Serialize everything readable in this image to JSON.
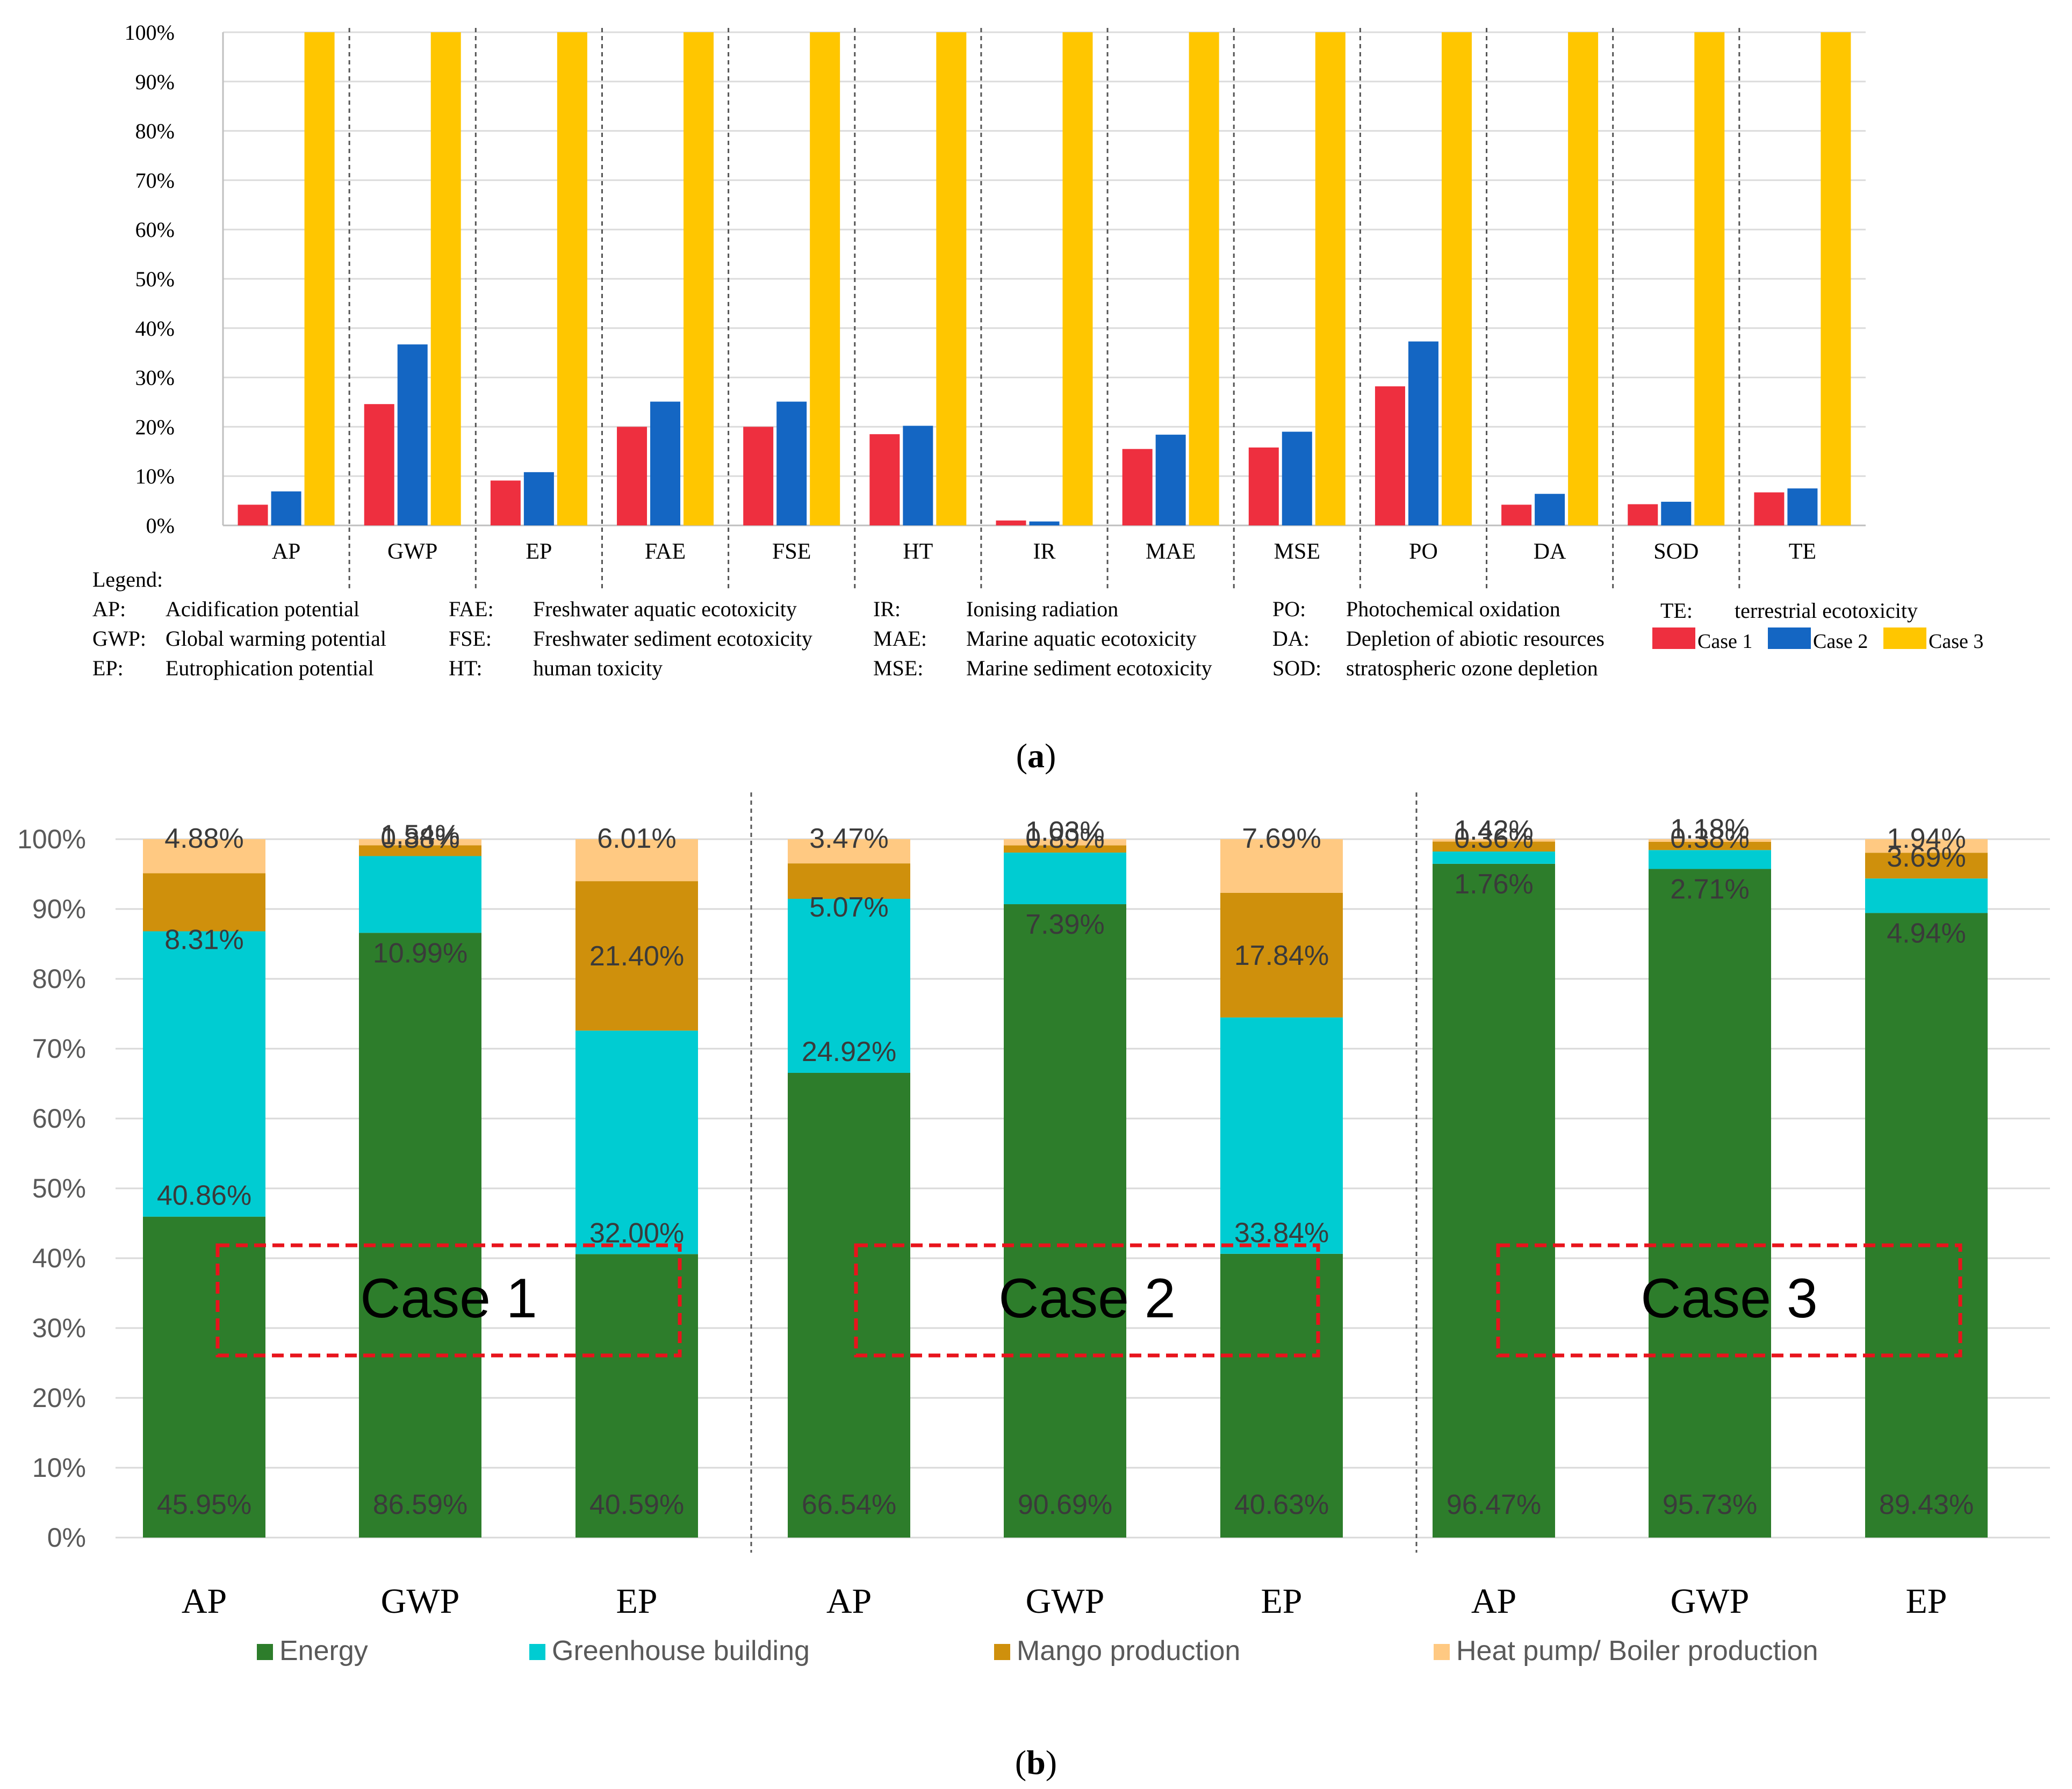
{
  "chart_data": [
    {
      "id": "a",
      "type": "bar",
      "panel_label": "a",
      "ylim": [
        0,
        100
      ],
      "y_ticks": [
        "0%",
        "10%",
        "20%",
        "30%",
        "40%",
        "50%",
        "60%",
        "70%",
        "80%",
        "90%",
        "100%"
      ],
      "categories": [
        "AP",
        "GWP",
        "EP",
        "FAE",
        "FSE",
        "HT",
        "IR",
        "MAE",
        "MSE",
        "PO",
        "DA",
        "SOD",
        "TE"
      ],
      "series": [
        {
          "name": "Case 1",
          "color": "#ee2f3f",
          "values": [
            4.2,
            24.6,
            9.1,
            20.0,
            20.0,
            18.5,
            1.0,
            15.5,
            15.8,
            28.2,
            4.2,
            4.3,
            6.7
          ]
        },
        {
          "name": "Case 2",
          "color": "#1466c3",
          "values": [
            6.9,
            36.7,
            10.8,
            25.1,
            25.1,
            20.2,
            0.8,
            18.4,
            19.0,
            37.3,
            6.4,
            4.8,
            7.5
          ]
        },
        {
          "name": "Case 3",
          "color": "#ffc600",
          "values": [
            100,
            100,
            100,
            100,
            100,
            100,
            100,
            100,
            100,
            100,
            100,
            100,
            100
          ]
        }
      ],
      "legend_title": "Legend:",
      "legend_abbreviations": [
        {
          "abbr": "AP:",
          "text": "Acidification potential"
        },
        {
          "abbr": "GWP:",
          "text": "Global warming potential"
        },
        {
          "abbr": "EP:",
          "text": "Eutrophication potential"
        },
        {
          "abbr": "FAE:",
          "text": "Freshwater aquatic ecotoxicity"
        },
        {
          "abbr": "FSE:",
          "text": "Freshwater sediment ecotoxicity"
        },
        {
          "abbr": "HT:",
          "text": "human toxicity"
        },
        {
          "abbr": "IR:",
          "text": "Ionising radiation"
        },
        {
          "abbr": "MAE:",
          "text": "Marine aquatic ecotoxicity"
        },
        {
          "abbr": "MSE:",
          "text": "Marine sediment ecotoxicity"
        },
        {
          "abbr": "PO:",
          "text": "Photochemical oxidation"
        },
        {
          "abbr": "DA:",
          "text": "Depletion of abiotic resources"
        },
        {
          "abbr": "SOD:",
          "text": "stratospheric ozone depletion"
        },
        {
          "abbr": "TE:",
          "text": "terrestrial ecotoxicity"
        }
      ]
    },
    {
      "id": "b",
      "type": "bar",
      "stacked": true,
      "panel_label": "b",
      "ylim": [
        0,
        100
      ],
      "y_ticks": [
        "0%",
        "10%",
        "20%",
        "30%",
        "40%",
        "50%",
        "60%",
        "70%",
        "80%",
        "90%",
        "100%"
      ],
      "series_names": [
        "Energy",
        "Greenhouse building",
        "Mango production",
        "Heat pump/ Boiler production"
      ],
      "series_colors": [
        "#2d7d2b",
        "#00ccd2",
        "#cf900c",
        "#ffc982"
      ],
      "groups": [
        {
          "box_label": "Case 1",
          "bars": [
            {
              "category": "AP",
              "values": [
                45.95,
                40.86,
                8.31,
                4.88
              ],
              "labels": [
                "45.95%",
                "40.86%",
                "8.31%",
                "4.88%"
              ]
            },
            {
              "category": "GWP",
              "values": [
                86.59,
                10.99,
                1.54,
                0.88
              ],
              "labels": [
                "86.59%",
                "10.99%",
                "1.54%",
                "0.88%"
              ]
            },
            {
              "category": "EP",
              "values": [
                40.59,
                32.0,
                21.4,
                6.01
              ],
              "labels": [
                "40.59%",
                "32.00%",
                "21.40%",
                "6.01%"
              ]
            }
          ]
        },
        {
          "box_label": "Case 2",
          "bars": [
            {
              "category": "AP",
              "values": [
                66.54,
                24.92,
                5.07,
                3.47
              ],
              "labels": [
                "66.54%",
                "24.92%",
                "5.07%",
                "3.47%"
              ]
            },
            {
              "category": "GWP",
              "values": [
                90.69,
                7.39,
                1.03,
                0.89
              ],
              "labels": [
                "90.69%",
                "7.39%",
                "1.03%",
                "0.89%"
              ]
            },
            {
              "category": "EP",
              "values": [
                40.63,
                33.84,
                17.84,
                7.69
              ],
              "labels": [
                "40.63%",
                "33.84%",
                "17.84%",
                "7.69%"
              ]
            }
          ]
        },
        {
          "box_label": "Case 3",
          "bars": [
            {
              "category": "AP",
              "values": [
                96.47,
                1.76,
                1.42,
                0.36
              ],
              "labels": [
                "96.47%",
                "1.76%",
                "1.42%",
                "0.36%"
              ]
            },
            {
              "category": "GWP",
              "values": [
                95.73,
                2.71,
                1.18,
                0.38
              ],
              "labels": [
                "95.73%",
                "2.71%",
                "1.18%",
                "0.38%"
              ]
            },
            {
              "category": "EP",
              "values": [
                89.43,
                4.94,
                3.69,
                1.94
              ],
              "labels": [
                "89.43%",
                "4.94%",
                "3.69%",
                "1.94%"
              ]
            }
          ]
        }
      ]
    }
  ]
}
